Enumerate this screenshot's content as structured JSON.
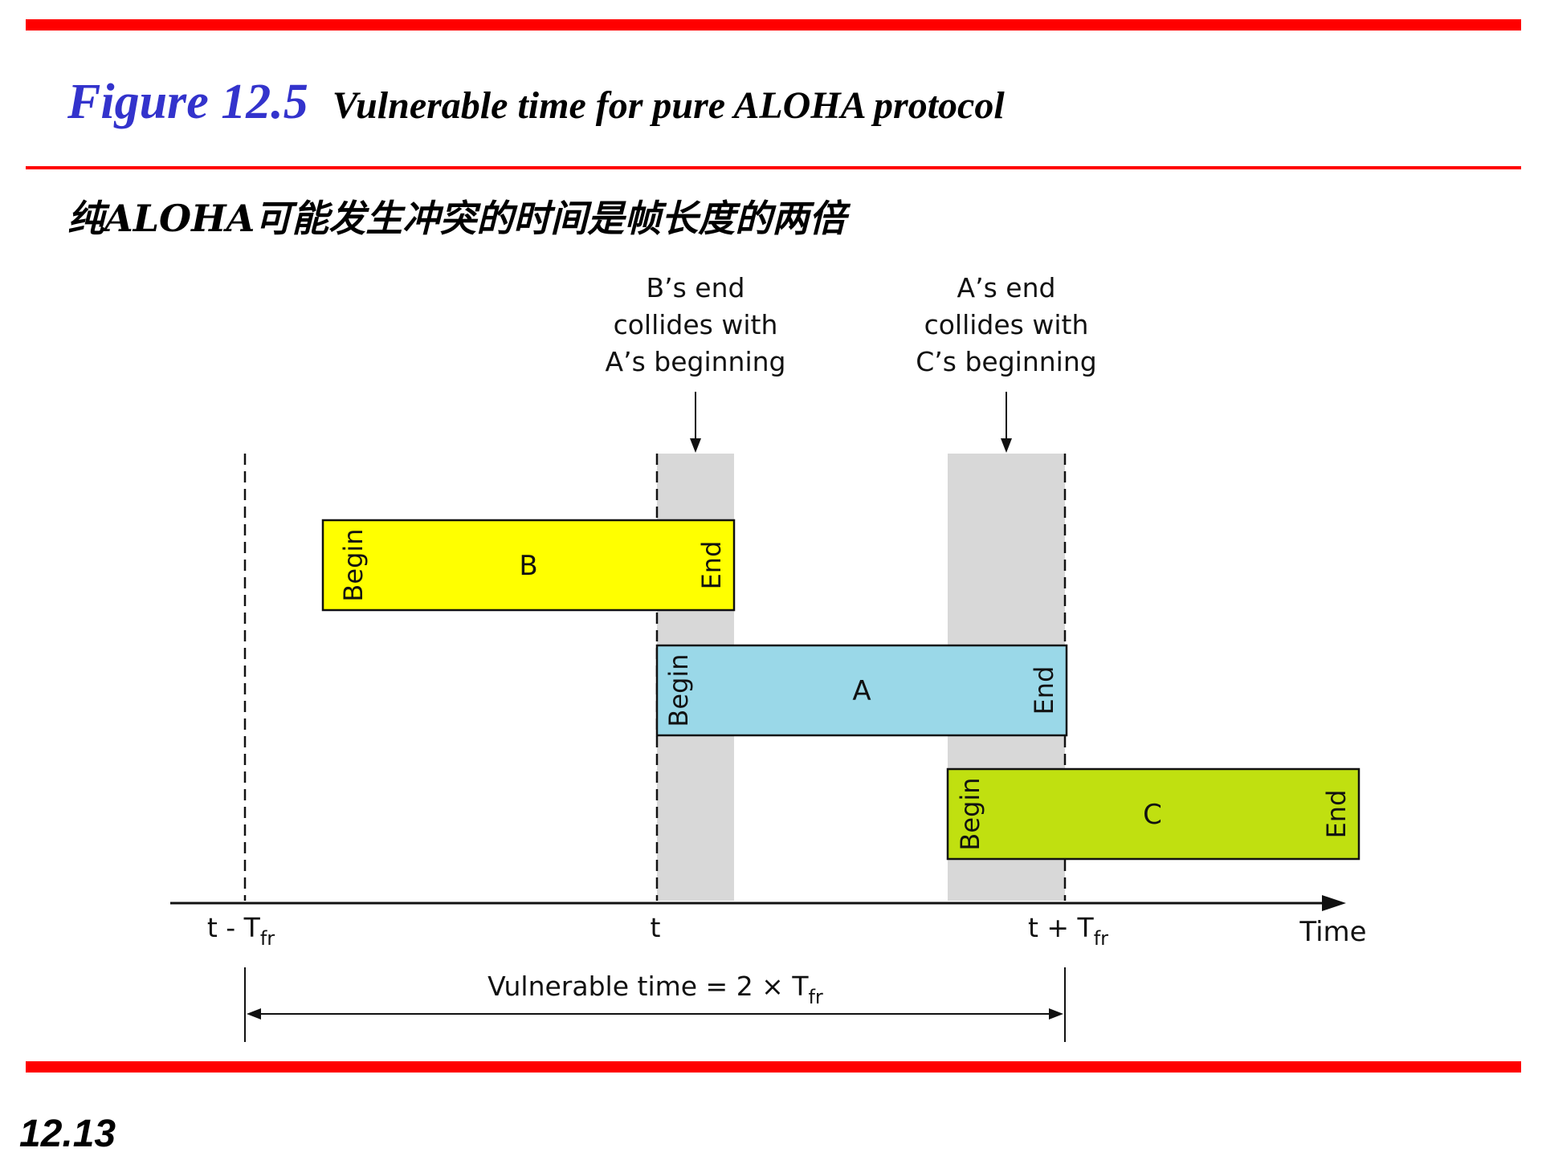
{
  "header": {
    "figure_number": "Figure 12.5",
    "figure_caption": "Vulnerable time for pure ALOHA protocol",
    "subtitle": "纯ALOHA可能发生冲突的时间是帧长度的两倍"
  },
  "footer": {
    "page_number": "12.13"
  },
  "colors": {
    "rule": "#ff0000",
    "figure_number": "#3333cc",
    "frame_b": "#ffff00",
    "frame_a": "#9ad8e8",
    "frame_c": "#c0e010",
    "vulnerable_zone": "#d8d8d8"
  },
  "annotations": {
    "left": {
      "lines": [
        "B’s end",
        "collides with",
        "A’s beginning"
      ]
    },
    "right": {
      "lines": [
        "A’s end",
        "collides with",
        "C’s beginning"
      ]
    }
  },
  "frames": [
    {
      "id": "b",
      "label": "B",
      "begin": "Begin",
      "end": "End"
    },
    {
      "id": "a",
      "label": "A",
      "begin": "Begin",
      "end": "End"
    },
    {
      "id": "c",
      "label": "C",
      "begin": "Begin",
      "end": "End"
    }
  ],
  "axis": {
    "label": "Time",
    "ticks": [
      {
        "main": "t - T",
        "sub": "fr"
      },
      {
        "main": "t",
        "sub": ""
      },
      {
        "main": "t + T",
        "sub": "fr"
      }
    ]
  },
  "vulnerable": {
    "main": "Vulnerable time = 2 × T",
    "sub": "fr"
  }
}
